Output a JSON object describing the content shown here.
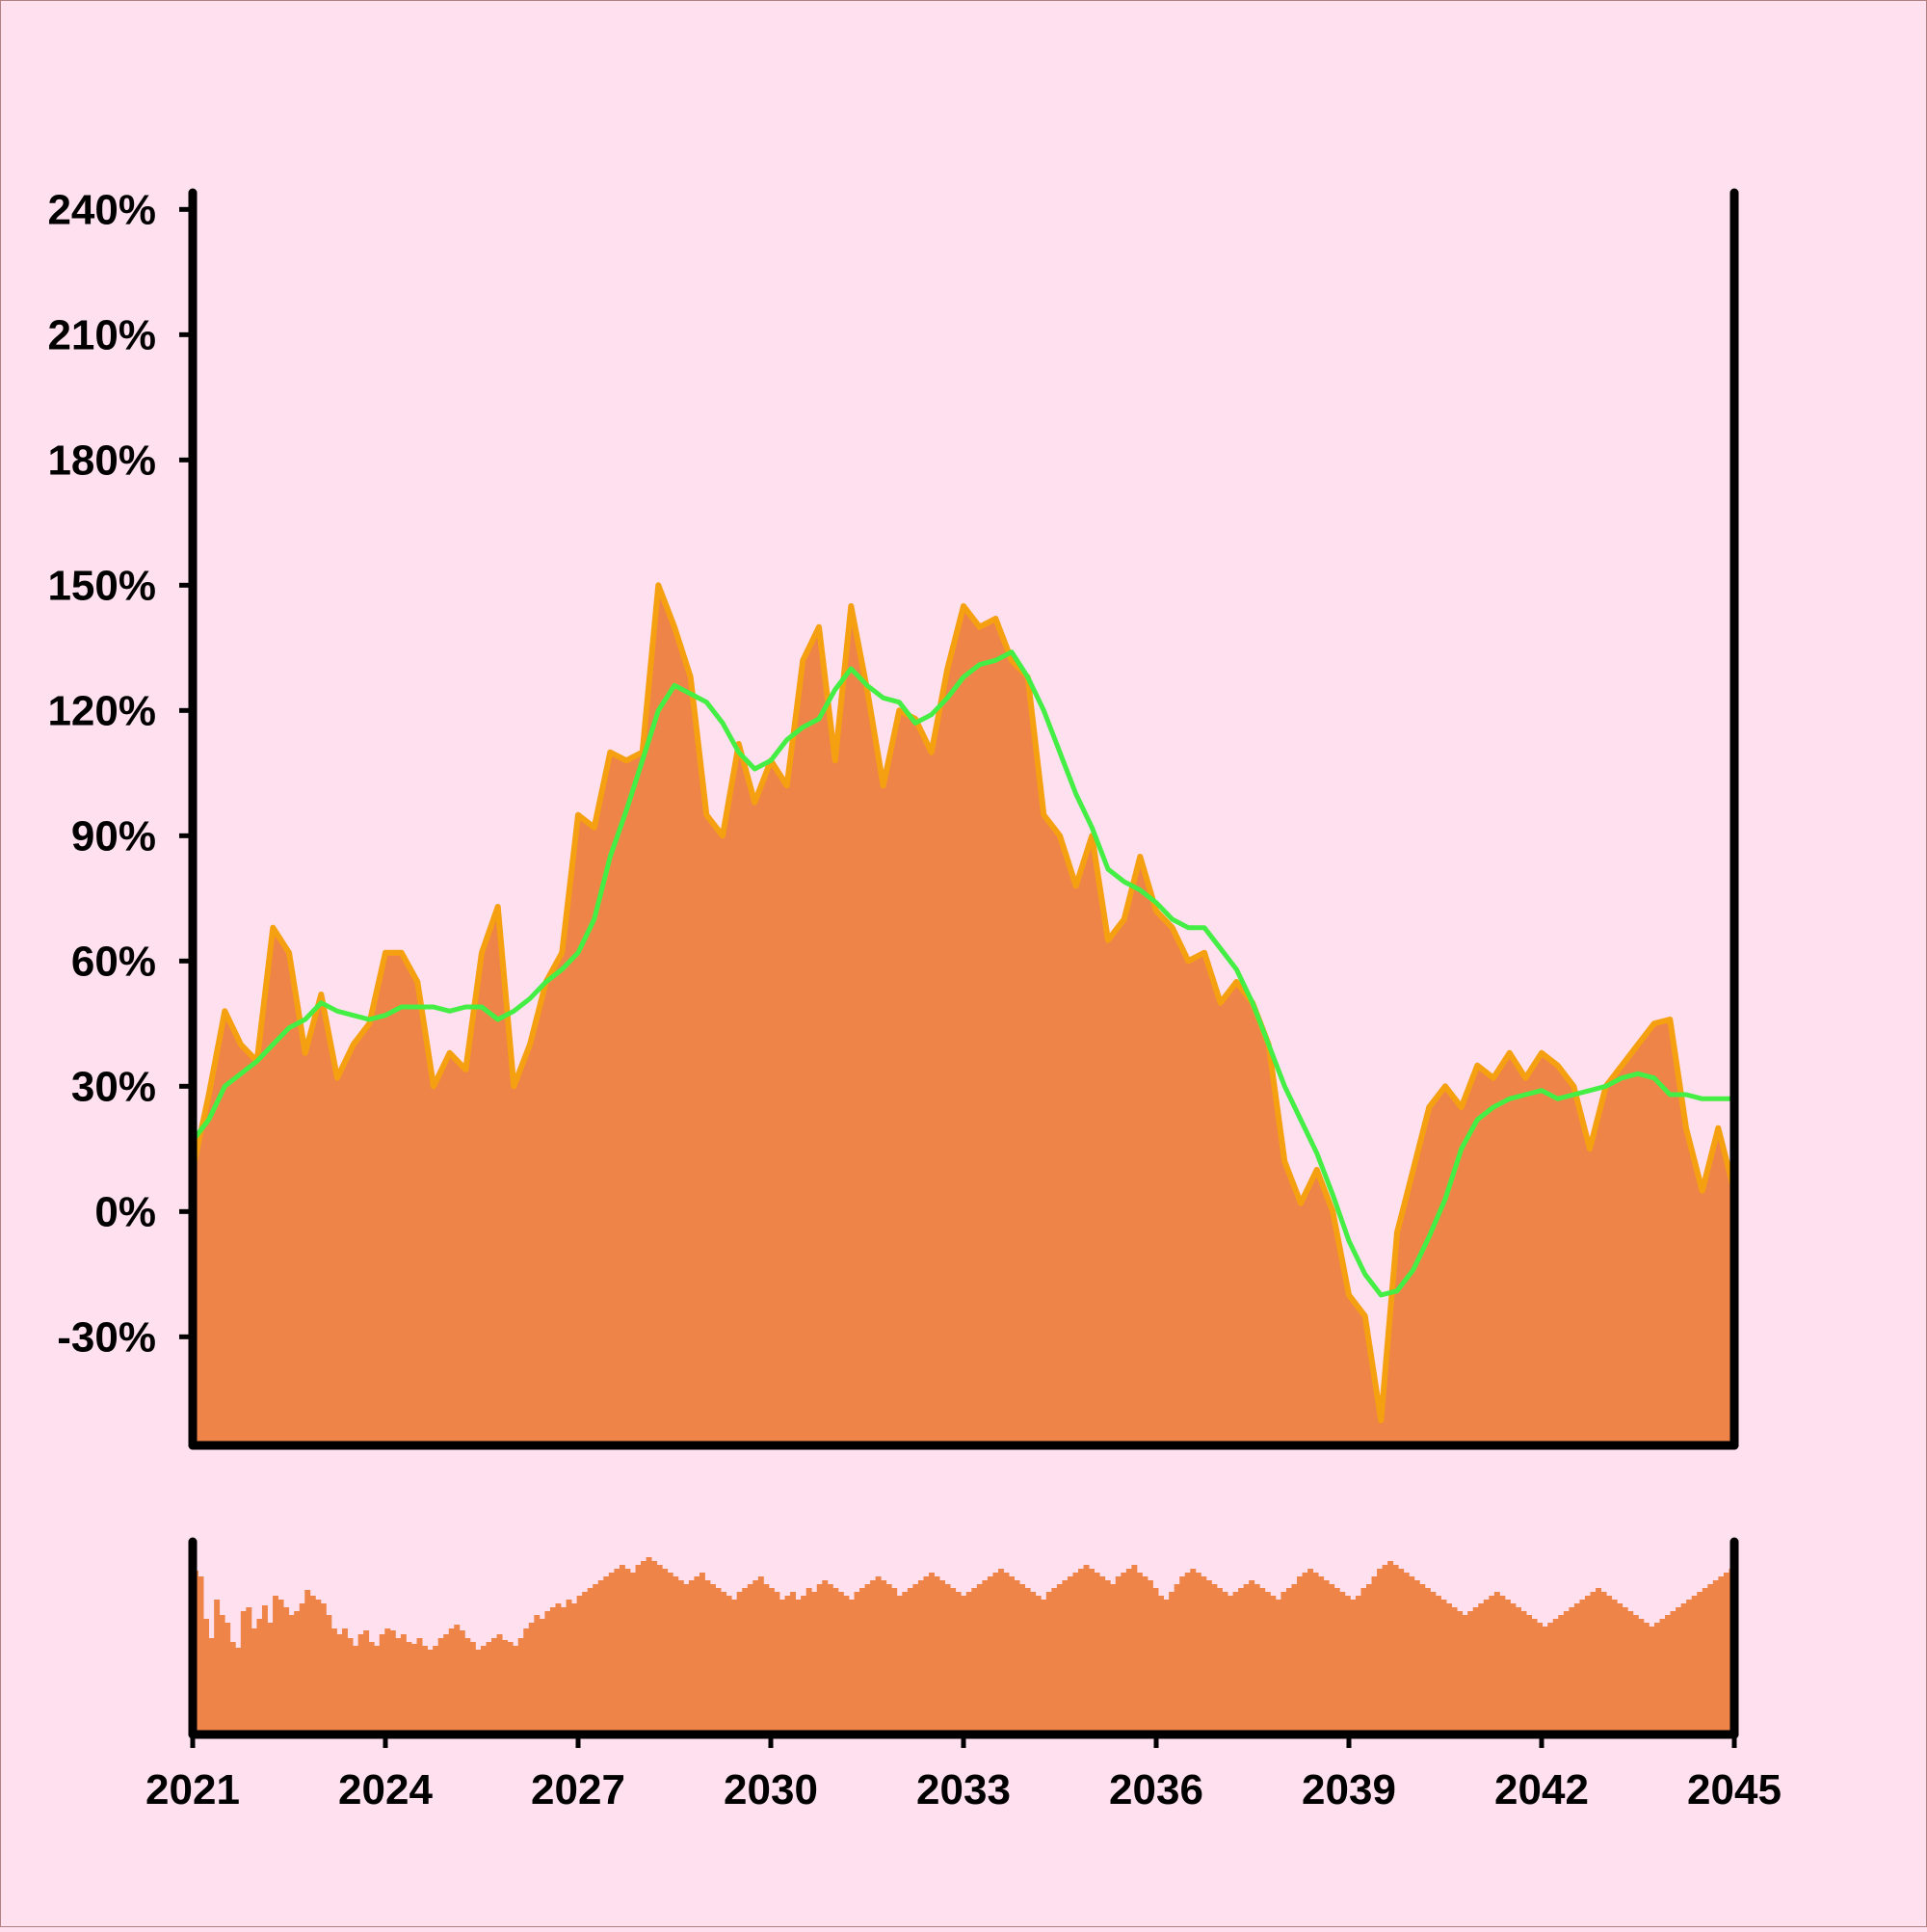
{
  "chart_data": {
    "type": "area",
    "title": "",
    "xlabel": "",
    "ylabel": "",
    "x_ticks": [
      "2021",
      "2024",
      "2027",
      "2030",
      "2033",
      "2036",
      "2039",
      "2042",
      "2045"
    ],
    "x_tick_values": [
      2021,
      2024,
      2027,
      2030,
      2033,
      2036,
      2039,
      2042,
      2045
    ],
    "y_ticks": [
      "240%",
      "210%",
      "180%",
      "150%",
      "120%",
      "90%",
      "60%",
      "30%",
      "0%",
      "-30%"
    ],
    "y_tick_values": [
      240,
      210,
      180,
      150,
      120,
      90,
      60,
      30,
      0,
      -30
    ],
    "xlim": [
      2021,
      2045
    ],
    "ylim": [
      -56,
      244
    ],
    "grid": false,
    "legend": "none",
    "colors": {
      "background": "#ffe0ee",
      "area_fill": "#ee8448",
      "area_edge": "#f5a010",
      "moving_average": "#44ee44",
      "volume": "#ee8448",
      "axis": "#000000"
    },
    "series": [
      {
        "kind": "area",
        "x": [
          2021.0,
          2021.25,
          2021.5,
          2021.75,
          2022.0,
          2022.25,
          2022.5,
          2022.75,
          2023.0,
          2023.25,
          2023.5,
          2023.75,
          2024.0,
          2024.25,
          2024.5,
          2024.75,
          2025.0,
          2025.25,
          2025.5,
          2025.75,
          2026.0,
          2026.25,
          2026.5,
          2026.75,
          2027.0,
          2027.25,
          2027.5,
          2027.75,
          2028.0,
          2028.25,
          2028.5,
          2028.75,
          2029.0,
          2029.25,
          2029.5,
          2029.75,
          2030.0,
          2030.25,
          2030.5,
          2030.75,
          2031.0,
          2031.25,
          2031.5,
          2031.75,
          2032.0,
          2032.25,
          2032.5,
          2032.75,
          2033.0,
          2033.25,
          2033.5,
          2033.75,
          2034.0,
          2034.25,
          2034.5,
          2034.75,
          2035.0,
          2035.25,
          2035.5,
          2035.75,
          2036.0,
          2036.25,
          2036.5,
          2036.75,
          2037.0,
          2037.25,
          2037.5,
          2037.75,
          2038.0,
          2038.25,
          2038.5,
          2038.75,
          2039.0,
          2039.25,
          2039.5,
          2039.75,
          2040.0,
          2040.25,
          2040.5,
          2040.75,
          2041.0,
          2041.25,
          2041.5,
          2041.75,
          2042.0,
          2042.25,
          2042.5,
          2042.75,
          2043.0,
          2043.25,
          2043.5,
          2043.75,
          2044.0,
          2044.25,
          2044.5,
          2044.75,
          2045.0
        ],
        "y": [
          10,
          28,
          48,
          40,
          36,
          68,
          62,
          38,
          52,
          32,
          40,
          45,
          62,
          62,
          55,
          30,
          38,
          34,
          62,
          73,
          30,
          40,
          55,
          62,
          95,
          92,
          110,
          108,
          110,
          150,
          140,
          128,
          95,
          90,
          112,
          98,
          108,
          102,
          132,
          140,
          108,
          145,
          125,
          102,
          120,
          118,
          110,
          130,
          145,
          140,
          142,
          132,
          128,
          95,
          90,
          78,
          90,
          65,
          70,
          85,
          72,
          68,
          60,
          62,
          50,
          55,
          50,
          40,
          12,
          2,
          10,
          0,
          -20,
          -25,
          -50,
          -5,
          10,
          25,
          30,
          25,
          35,
          32,
          38,
          32,
          38,
          35,
          30,
          15,
          30,
          35,
          40,
          45,
          46,
          20,
          5,
          20,
          5
        ]
      },
      {
        "kind": "line",
        "x": [
          2021.0,
          2021.25,
          2021.5,
          2021.75,
          2022.0,
          2022.25,
          2022.5,
          2022.75,
          2023.0,
          2023.25,
          2023.5,
          2023.75,
          2024.0,
          2024.25,
          2024.5,
          2024.75,
          2025.0,
          2025.25,
          2025.5,
          2025.75,
          2026.0,
          2026.25,
          2026.5,
          2026.75,
          2027.0,
          2027.25,
          2027.5,
          2027.75,
          2028.0,
          2028.25,
          2028.5,
          2028.75,
          2029.0,
          2029.25,
          2029.5,
          2029.75,
          2030.0,
          2030.25,
          2030.5,
          2030.75,
          2031.0,
          2031.25,
          2031.5,
          2031.75,
          2032.0,
          2032.25,
          2032.5,
          2032.75,
          2033.0,
          2033.25,
          2033.5,
          2033.75,
          2034.0,
          2034.25,
          2034.5,
          2034.75,
          2035.0,
          2035.25,
          2035.5,
          2035.75,
          2036.0,
          2036.25,
          2036.5,
          2036.75,
          2037.0,
          2037.25,
          2037.5,
          2037.75,
          2038.0,
          2038.25,
          2038.5,
          2038.75,
          2039.0,
          2039.25,
          2039.5,
          2039.75,
          2040.0,
          2040.25,
          2040.5,
          2040.75,
          2041.0,
          2041.25,
          2041.5,
          2041.75,
          2042.0,
          2042.25,
          2042.5,
          2042.75,
          2043.0,
          2043.25,
          2043.5,
          2043.75,
          2044.0,
          2044.25,
          2044.5,
          2044.75,
          2045.0
        ],
        "y": [
          17,
          22,
          30,
          33,
          36,
          40,
          44,
          46,
          50,
          48,
          47,
          46,
          47,
          49,
          49,
          49,
          48,
          49,
          49,
          46,
          48,
          51,
          55,
          58,
          62,
          70,
          85,
          96,
          108,
          120,
          126,
          124,
          122,
          117,
          110,
          106,
          108,
          113,
          116,
          118,
          125,
          130,
          126,
          123,
          122,
          117,
          119,
          123,
          128,
          131,
          132,
          134,
          128,
          120,
          110,
          100,
          92,
          82,
          79,
          77,
          74,
          70,
          68,
          68,
          63,
          58,
          50,
          40,
          30,
          22,
          14,
          4,
          -7,
          -15,
          -20,
          -19,
          -14,
          -6,
          3,
          15,
          22,
          25,
          27,
          28,
          29,
          27,
          28,
          29,
          30,
          32,
          33,
          32,
          28,
          28,
          27,
          27,
          27
        ]
      }
    ],
    "volume": {
      "kind": "bar",
      "x_range": [
        2021,
        2045
      ],
      "ylim": [
        0,
        100
      ],
      "values": [
        85,
        82,
        60,
        50,
        70,
        62,
        58,
        48,
        45,
        64,
        66,
        55,
        60,
        67,
        58,
        72,
        70,
        66,
        62,
        64,
        68,
        75,
        72,
        70,
        68,
        62,
        55,
        52,
        55,
        50,
        46,
        52,
        54,
        48,
        46,
        52,
        55,
        54,
        50,
        52,
        48,
        47,
        50,
        46,
        44,
        46,
        50,
        52,
        55,
        57,
        54,
        50,
        48,
        44,
        46,
        48,
        50,
        52,
        49,
        48,
        46,
        50,
        55,
        58,
        62,
        60,
        64,
        66,
        68,
        66,
        70,
        68,
        72,
        74,
        76,
        78,
        80,
        82,
        84,
        86,
        88,
        86,
        84,
        88,
        90,
        92,
        90,
        88,
        86,
        84,
        82,
        80,
        78,
        80,
        82,
        84,
        80,
        78,
        76,
        74,
        72,
        70,
        74,
        76,
        78,
        80,
        82,
        78,
        76,
        74,
        70,
        72,
        74,
        70,
        72,
        76,
        74,
        78,
        80,
        78,
        76,
        74,
        72,
        70,
        74,
        76,
        78,
        80,
        82,
        80,
        78,
        76,
        72,
        74,
        76,
        78,
        80,
        82,
        84,
        82,
        80,
        78,
        76,
        74,
        72,
        74,
        76,
        78,
        80,
        82,
        84,
        86,
        84,
        82,
        80,
        78,
        76,
        74,
        72,
        70,
        74,
        76,
        78,
        80,
        82,
        84,
        86,
        88,
        86,
        84,
        82,
        80,
        78,
        82,
        84,
        86,
        88,
        84,
        82,
        80,
        76,
        72,
        70,
        74,
        78,
        82,
        84,
        86,
        84,
        82,
        80,
        78,
        76,
        74,
        72,
        74,
        76,
        78,
        80,
        78,
        76,
        74,
        72,
        70,
        74,
        76,
        78,
        82,
        84,
        86,
        84,
        82,
        80,
        78,
        76,
        74,
        72,
        70,
        72,
        76,
        78,
        82,
        86,
        88,
        90,
        88,
        86,
        84,
        82,
        80,
        78,
        76,
        74,
        72,
        70,
        68,
        66,
        64,
        62,
        64,
        66,
        68,
        70,
        72,
        74,
        72,
        70,
        68,
        66,
        64,
        62,
        60,
        58,
        56,
        58,
        60,
        62,
        64,
        66,
        68,
        70,
        72,
        74,
        76,
        74,
        72,
        70,
        68,
        66,
        64,
        62,
        60,
        58,
        56,
        58,
        60,
        62,
        64,
        66,
        68,
        70,
        72,
        74,
        76,
        78,
        80,
        82,
        84,
        86
      ]
    }
  }
}
